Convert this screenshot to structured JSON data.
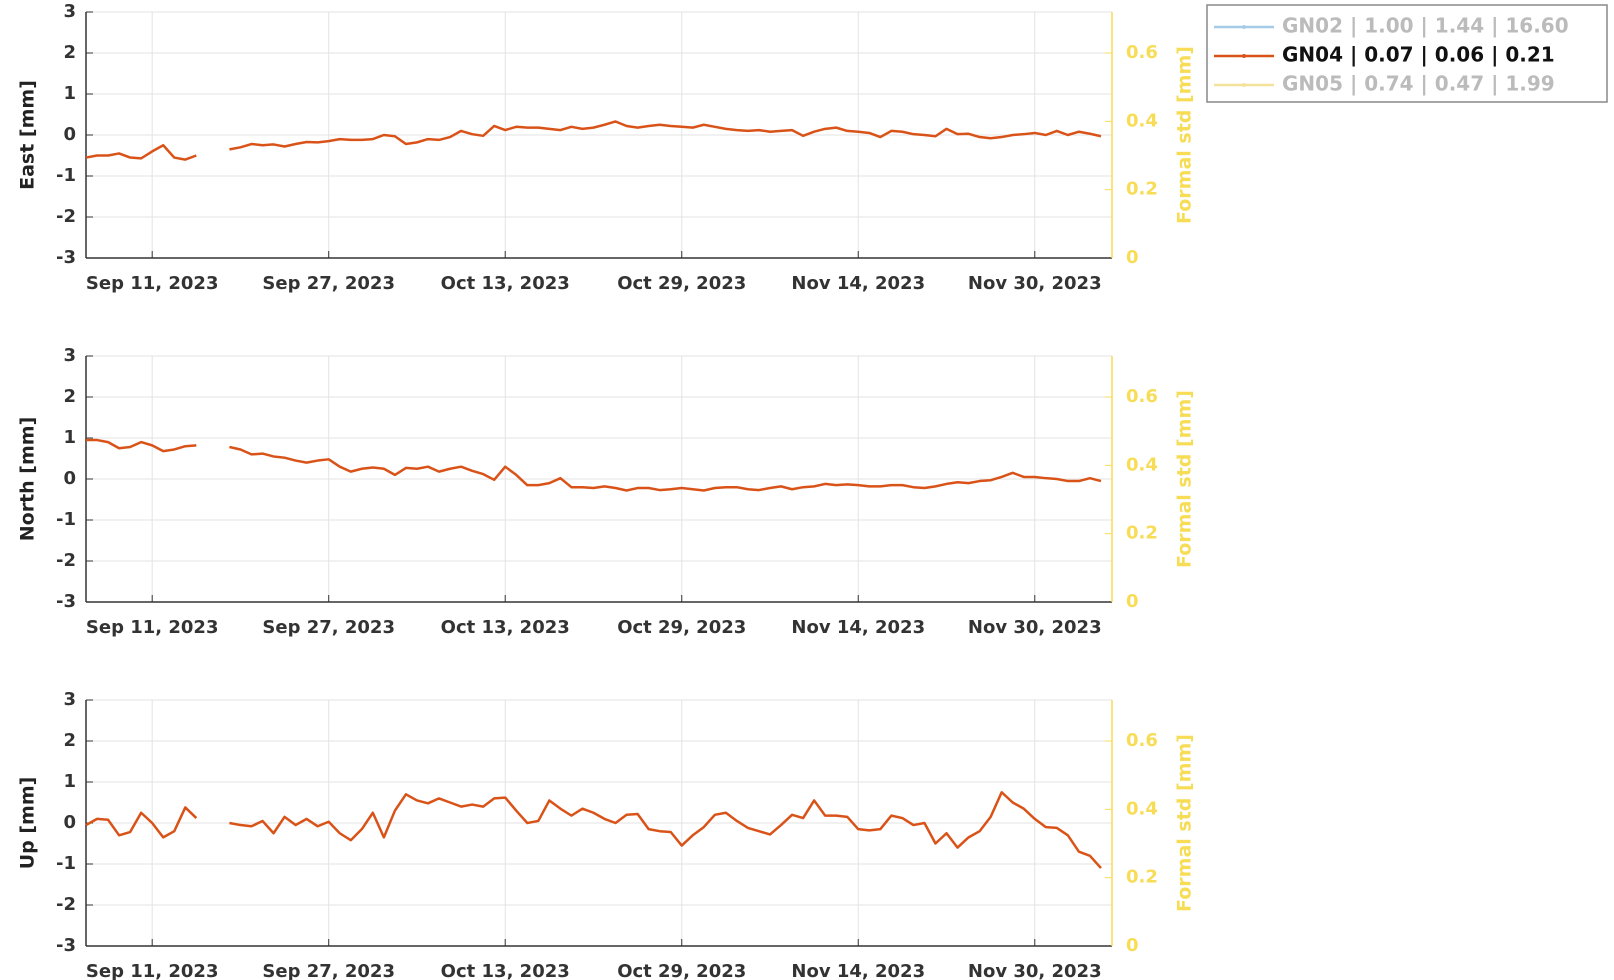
{
  "legend": [
    {
      "label": "GN02 | 1.00 | 1.44 | 16.60",
      "color": "#a6cbe8",
      "visible": false
    },
    {
      "label": "GN04 | 0.07 | 0.06 | 0.21",
      "color": "#d95319",
      "visible": true
    },
    {
      "label": "GN05 | 0.74 | 0.47 | 1.99",
      "color": "#f5e29a",
      "visible": false
    }
  ],
  "chart_data": [
    {
      "type": "line",
      "ylabel": "East [mm]",
      "y2label": "Formal std [mm]",
      "grid": true,
      "ylim": [
        -3,
        3
      ],
      "yticks": [
        -3,
        -2,
        -1,
        0,
        1,
        2,
        3
      ],
      "y2lim": [
        0,
        0.72
      ],
      "y2ticks": [
        0,
        0.2,
        0.4,
        0.6
      ],
      "y2color": "#f7dc55",
      "xlim": [
        "2023-09-05",
        "2023-12-07"
      ],
      "xticks": [
        {
          "value": "2023-09-11",
          "label": "Sep 11, 2023"
        },
        {
          "value": "2023-09-27",
          "label": "Sep 27, 2023"
        },
        {
          "value": "2023-10-13",
          "label": "Oct 13, 2023"
        },
        {
          "value": "2023-10-29",
          "label": "Oct 29, 2023"
        },
        {
          "value": "2023-11-14",
          "label": "Nov 14, 2023"
        },
        {
          "value": "2023-11-30",
          "label": "Nov 30, 2023"
        }
      ],
      "x": [
        "2023-09-05",
        "2023-09-06",
        "2023-09-07",
        "2023-09-08",
        "2023-09-09",
        "2023-09-10",
        "2023-09-11",
        "2023-09-12",
        "2023-09-13",
        "2023-09-14",
        "2023-09-15",
        "2023-09-16",
        "2023-09-17",
        "2023-09-18",
        "2023-09-19",
        "2023-09-20",
        "2023-09-21",
        "2023-09-22",
        "2023-09-23",
        "2023-09-24",
        "2023-09-25",
        "2023-09-26",
        "2023-09-27",
        "2023-09-28",
        "2023-09-29",
        "2023-09-30",
        "2023-10-01",
        "2023-10-02",
        "2023-10-03",
        "2023-10-04",
        "2023-10-05",
        "2023-10-06",
        "2023-10-07",
        "2023-10-08",
        "2023-10-09",
        "2023-10-10",
        "2023-10-11",
        "2023-10-12",
        "2023-10-13",
        "2023-10-14",
        "2023-10-15",
        "2023-10-16",
        "2023-10-17",
        "2023-10-18",
        "2023-10-19",
        "2023-10-20",
        "2023-10-21",
        "2023-10-22",
        "2023-10-23",
        "2023-10-24",
        "2023-10-25",
        "2023-10-26",
        "2023-10-27",
        "2023-10-28",
        "2023-10-29",
        "2023-10-30",
        "2023-10-31",
        "2023-11-01",
        "2023-11-02",
        "2023-11-03",
        "2023-11-04",
        "2023-11-05",
        "2023-11-06",
        "2023-11-07",
        "2023-11-08",
        "2023-11-09",
        "2023-11-10",
        "2023-11-11",
        "2023-11-12",
        "2023-11-13",
        "2023-11-14",
        "2023-11-15",
        "2023-11-16",
        "2023-11-17",
        "2023-11-18",
        "2023-11-19",
        "2023-11-20",
        "2023-11-21",
        "2023-11-22",
        "2023-11-23",
        "2023-11-24",
        "2023-11-25",
        "2023-11-26",
        "2023-11-27",
        "2023-11-28",
        "2023-11-29",
        "2023-11-30",
        "2023-12-01",
        "2023-12-02",
        "2023-12-03",
        "2023-12-04",
        "2023-12-05",
        "2023-12-06"
      ],
      "series": [
        {
          "color": "#d95319",
          "values": [
            -0.55,
            -0.5,
            -0.5,
            -0.45,
            -0.55,
            -0.57,
            -0.4,
            -0.25,
            -0.55,
            -0.6,
            -0.5,
            null,
            null,
            -0.35,
            -0.3,
            -0.22,
            -0.25,
            -0.23,
            -0.28,
            -0.22,
            -0.17,
            -0.18,
            -0.15,
            -0.1,
            -0.12,
            -0.12,
            -0.1,
            0.0,
            -0.03,
            -0.22,
            -0.18,
            -0.1,
            -0.12,
            -0.05,
            0.1,
            0.02,
            -0.02,
            0.22,
            0.12,
            0.2,
            0.18,
            0.18,
            0.15,
            0.12,
            0.2,
            0.15,
            0.18,
            0.25,
            0.33,
            0.22,
            0.18,
            0.22,
            0.25,
            0.22,
            0.2,
            0.18,
            0.25,
            0.2,
            0.15,
            0.12,
            0.1,
            0.12,
            0.08,
            0.1,
            0.12,
            -0.02,
            0.08,
            0.15,
            0.18,
            0.1,
            0.08,
            0.05,
            -0.05,
            0.1,
            0.08,
            0.02,
            0.0,
            -0.03,
            0.15,
            0.02,
            0.03,
            -0.05,
            -0.08,
            -0.05,
            0.0,
            0.02,
            0.05,
            0.0,
            0.1,
            0.0,
            0.08,
            0.03,
            -0.03
          ]
        }
      ]
    },
    {
      "type": "line",
      "ylabel": "North [mm]",
      "y2label": "Formal std [mm]",
      "grid": true,
      "ylim": [
        -3,
        3
      ],
      "yticks": [
        -3,
        -2,
        -1,
        0,
        1,
        2,
        3
      ],
      "y2lim": [
        0,
        0.72
      ],
      "y2ticks": [
        0,
        0.2,
        0.4,
        0.6
      ],
      "y2color": "#f7dc55",
      "xlim": [
        "2023-09-05",
        "2023-12-07"
      ],
      "xticks": [
        {
          "value": "2023-09-11",
          "label": "Sep 11, 2023"
        },
        {
          "value": "2023-09-27",
          "label": "Sep 27, 2023"
        },
        {
          "value": "2023-10-13",
          "label": "Oct 13, 2023"
        },
        {
          "value": "2023-10-29",
          "label": "Oct 29, 2023"
        },
        {
          "value": "2023-11-14",
          "label": "Nov 14, 2023"
        },
        {
          "value": "2023-11-30",
          "label": "Nov 30, 2023"
        }
      ],
      "x": [
        "2023-09-05",
        "2023-09-06",
        "2023-09-07",
        "2023-09-08",
        "2023-09-09",
        "2023-09-10",
        "2023-09-11",
        "2023-09-12",
        "2023-09-13",
        "2023-09-14",
        "2023-09-15",
        "2023-09-16",
        "2023-09-17",
        "2023-09-18",
        "2023-09-19",
        "2023-09-20",
        "2023-09-21",
        "2023-09-22",
        "2023-09-23",
        "2023-09-24",
        "2023-09-25",
        "2023-09-26",
        "2023-09-27",
        "2023-09-28",
        "2023-09-29",
        "2023-09-30",
        "2023-10-01",
        "2023-10-02",
        "2023-10-03",
        "2023-10-04",
        "2023-10-05",
        "2023-10-06",
        "2023-10-07",
        "2023-10-08",
        "2023-10-09",
        "2023-10-10",
        "2023-10-11",
        "2023-10-12",
        "2023-10-13",
        "2023-10-14",
        "2023-10-15",
        "2023-10-16",
        "2023-10-17",
        "2023-10-18",
        "2023-10-19",
        "2023-10-20",
        "2023-10-21",
        "2023-10-22",
        "2023-10-23",
        "2023-10-24",
        "2023-10-25",
        "2023-10-26",
        "2023-10-27",
        "2023-10-28",
        "2023-10-29",
        "2023-10-30",
        "2023-10-31",
        "2023-11-01",
        "2023-11-02",
        "2023-11-03",
        "2023-11-04",
        "2023-11-05",
        "2023-11-06",
        "2023-11-07",
        "2023-11-08",
        "2023-11-09",
        "2023-11-10",
        "2023-11-11",
        "2023-11-12",
        "2023-11-13",
        "2023-11-14",
        "2023-11-15",
        "2023-11-16",
        "2023-11-17",
        "2023-11-18",
        "2023-11-19",
        "2023-11-20",
        "2023-11-21",
        "2023-11-22",
        "2023-11-23",
        "2023-11-24",
        "2023-11-25",
        "2023-11-26",
        "2023-11-27",
        "2023-11-28",
        "2023-11-29",
        "2023-11-30",
        "2023-12-01",
        "2023-12-02",
        "2023-12-03",
        "2023-12-04",
        "2023-12-05",
        "2023-12-06"
      ],
      "series": [
        {
          "color": "#d95319",
          "values": [
            0.95,
            0.95,
            0.9,
            0.75,
            0.78,
            0.9,
            0.82,
            0.68,
            0.72,
            0.8,
            0.82,
            null,
            null,
            0.78,
            0.72,
            0.6,
            0.62,
            0.55,
            0.52,
            0.45,
            0.4,
            0.45,
            0.48,
            0.3,
            0.18,
            0.25,
            0.28,
            0.25,
            0.1,
            0.27,
            0.25,
            0.3,
            0.18,
            0.25,
            0.3,
            0.2,
            0.12,
            -0.02,
            0.3,
            0.1,
            -0.15,
            -0.15,
            -0.1,
            0.02,
            -0.2,
            -0.2,
            -0.22,
            -0.18,
            -0.22,
            -0.28,
            -0.22,
            -0.22,
            -0.27,
            -0.25,
            -0.22,
            -0.25,
            -0.28,
            -0.22,
            -0.2,
            -0.2,
            -0.25,
            -0.27,
            -0.22,
            -0.18,
            -0.25,
            -0.2,
            -0.18,
            -0.12,
            -0.15,
            -0.13,
            -0.15,
            -0.18,
            -0.18,
            -0.15,
            -0.15,
            -0.2,
            -0.22,
            -0.18,
            -0.12,
            -0.08,
            -0.1,
            -0.05,
            -0.03,
            0.05,
            0.15,
            0.05,
            0.05,
            0.02,
            0.0,
            -0.05,
            -0.05,
            0.02,
            -0.05
          ]
        }
      ]
    },
    {
      "type": "line",
      "ylabel": "Up [mm]",
      "y2label": "Formal std [mm]",
      "grid": true,
      "ylim": [
        -3,
        3
      ],
      "yticks": [
        -3,
        -2,
        -1,
        0,
        1,
        2,
        3
      ],
      "y2lim": [
        0,
        0.72
      ],
      "y2ticks": [
        0,
        0.2,
        0.4,
        0.6
      ],
      "y2color": "#f7dc55",
      "xlim": [
        "2023-09-05",
        "2023-12-07"
      ],
      "xticks": [
        {
          "value": "2023-09-11",
          "label": "Sep 11, 2023"
        },
        {
          "value": "2023-09-27",
          "label": "Sep 27, 2023"
        },
        {
          "value": "2023-10-13",
          "label": "Oct 13, 2023"
        },
        {
          "value": "2023-10-29",
          "label": "Oct 29, 2023"
        },
        {
          "value": "2023-11-14",
          "label": "Nov 14, 2023"
        },
        {
          "value": "2023-11-30",
          "label": "Nov 30, 2023"
        }
      ],
      "x": [
        "2023-09-05",
        "2023-09-06",
        "2023-09-07",
        "2023-09-08",
        "2023-09-09",
        "2023-09-10",
        "2023-09-11",
        "2023-09-12",
        "2023-09-13",
        "2023-09-14",
        "2023-09-15",
        "2023-09-16",
        "2023-09-17",
        "2023-09-18",
        "2023-09-19",
        "2023-09-20",
        "2023-09-21",
        "2023-09-22",
        "2023-09-23",
        "2023-09-24",
        "2023-09-25",
        "2023-09-26",
        "2023-09-27",
        "2023-09-28",
        "2023-09-29",
        "2023-09-30",
        "2023-10-01",
        "2023-10-02",
        "2023-10-03",
        "2023-10-04",
        "2023-10-05",
        "2023-10-06",
        "2023-10-07",
        "2023-10-08",
        "2023-10-09",
        "2023-10-10",
        "2023-10-11",
        "2023-10-12",
        "2023-10-13",
        "2023-10-14",
        "2023-10-15",
        "2023-10-16",
        "2023-10-17",
        "2023-10-18",
        "2023-10-19",
        "2023-10-20",
        "2023-10-21",
        "2023-10-22",
        "2023-10-23",
        "2023-10-24",
        "2023-10-25",
        "2023-10-26",
        "2023-10-27",
        "2023-10-28",
        "2023-10-29",
        "2023-10-30",
        "2023-10-31",
        "2023-11-01",
        "2023-11-02",
        "2023-11-03",
        "2023-11-04",
        "2023-11-05",
        "2023-11-06",
        "2023-11-07",
        "2023-11-08",
        "2023-11-09",
        "2023-11-10",
        "2023-11-11",
        "2023-11-12",
        "2023-11-13",
        "2023-11-14",
        "2023-11-15",
        "2023-11-16",
        "2023-11-17",
        "2023-11-18",
        "2023-11-19",
        "2023-11-20",
        "2023-11-21",
        "2023-11-22",
        "2023-11-23",
        "2023-11-24",
        "2023-11-25",
        "2023-11-26",
        "2023-11-27",
        "2023-11-28",
        "2023-11-29",
        "2023-11-30",
        "2023-12-01",
        "2023-12-02",
        "2023-12-03",
        "2023-12-04",
        "2023-12-05",
        "2023-12-06"
      ],
      "series": [
        {
          "color": "#d95319",
          "values": [
            -0.05,
            0.1,
            0.08,
            -0.3,
            -0.22,
            0.25,
            0.0,
            -0.35,
            -0.2,
            0.38,
            0.12,
            null,
            null,
            0.0,
            -0.05,
            -0.08,
            0.05,
            -0.25,
            0.15,
            -0.05,
            0.1,
            -0.08,
            0.03,
            -0.25,
            -0.42,
            -0.15,
            0.25,
            -0.35,
            0.3,
            0.7,
            0.55,
            0.48,
            0.6,
            0.5,
            0.4,
            0.45,
            0.4,
            0.6,
            0.62,
            0.3,
            0.0,
            0.05,
            0.55,
            0.35,
            0.18,
            0.35,
            0.25,
            0.1,
            0.0,
            0.2,
            0.22,
            -0.15,
            -0.2,
            -0.22,
            -0.55,
            -0.3,
            -0.1,
            0.2,
            0.25,
            0.05,
            -0.12,
            -0.2,
            -0.28,
            -0.05,
            0.2,
            0.12,
            0.55,
            0.18,
            0.18,
            0.15,
            -0.15,
            -0.18,
            -0.15,
            0.18,
            0.12,
            -0.05,
            0.0,
            -0.5,
            -0.25,
            -0.6,
            -0.35,
            -0.2,
            0.15,
            0.75,
            0.5,
            0.35,
            0.1,
            -0.1,
            -0.12,
            -0.3,
            -0.7,
            -0.8,
            -1.1
          ]
        }
      ]
    }
  ]
}
